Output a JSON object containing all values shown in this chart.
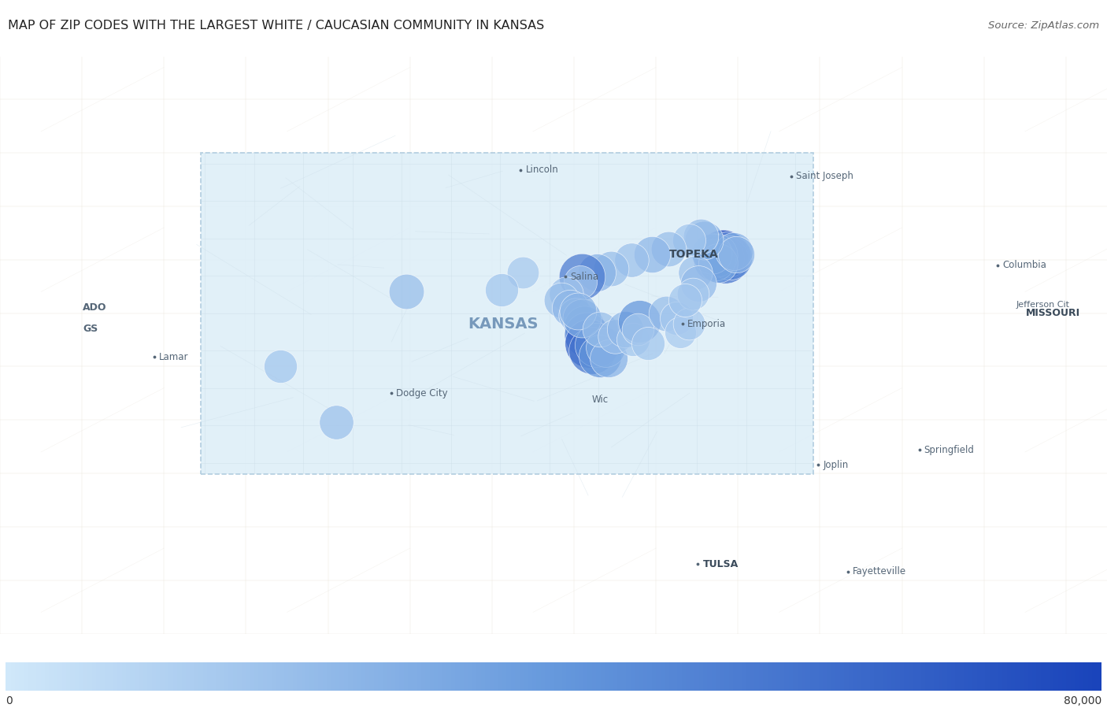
{
  "title": "MAP OF ZIP CODES WITH THE LARGEST WHITE / CAUCASIAN COMMUNITY IN KANSAS",
  "source": "Source: ZipAtlas.com",
  "colorbar_min": 0,
  "colorbar_max": 80000,
  "colorbar_label_min": "0",
  "colorbar_label_max": "80,000",
  "title_fontsize": 11.5,
  "source_fontsize": 9.5,
  "figsize": [
    14.06,
    8.99
  ],
  "dpi": 100,
  "dots": [
    {
      "lon": -95.69,
      "lat": 39.04,
      "size": 78000
    },
    {
      "lon": -95.72,
      "lat": 39.01,
      "size": 65000
    },
    {
      "lon": -95.66,
      "lat": 39.0,
      "size": 58000
    },
    {
      "lon": -95.63,
      "lat": 39.05,
      "size": 52000
    },
    {
      "lon": -95.6,
      "lat": 39.02,
      "size": 48000
    },
    {
      "lon": -95.77,
      "lat": 39.04,
      "size": 45000
    },
    {
      "lon": -95.79,
      "lat": 39.0,
      "size": 40000
    },
    {
      "lon": -95.82,
      "lat": 39.06,
      "size": 35000
    },
    {
      "lon": -95.74,
      "lat": 38.97,
      "size": 32000
    },
    {
      "lon": -95.55,
      "lat": 39.08,
      "size": 28000
    },
    {
      "lon": -95.52,
      "lat": 39.05,
      "size": 25000
    },
    {
      "lon": -95.92,
      "lat": 39.18,
      "size": 30000
    },
    {
      "lon": -95.95,
      "lat": 39.22,
      "size": 22000
    },
    {
      "lon": -96.1,
      "lat": 39.18,
      "size": 18000
    },
    {
      "lon": -96.35,
      "lat": 39.1,
      "size": 22000
    },
    {
      "lon": -96.55,
      "lat": 39.05,
      "size": 25000
    },
    {
      "lon": -96.8,
      "lat": 39.0,
      "size": 20000
    },
    {
      "lon": -97.05,
      "lat": 38.92,
      "size": 22000
    },
    {
      "lon": -97.22,
      "lat": 38.88,
      "size": 28000
    },
    {
      "lon": -97.4,
      "lat": 38.84,
      "size": 55000
    },
    {
      "lon": -97.42,
      "lat": 38.79,
      "size": 18000
    },
    {
      "lon": -97.6,
      "lat": 38.68,
      "size": 20000
    },
    {
      "lon": -97.65,
      "lat": 38.62,
      "size": 22000
    },
    {
      "lon": -97.55,
      "lat": 38.55,
      "size": 25000
    },
    {
      "lon": -97.48,
      "lat": 38.48,
      "size": 20000
    },
    {
      "lon": -97.38,
      "lat": 38.38,
      "size": 35000
    },
    {
      "lon": -97.35,
      "lat": 38.3,
      "size": 50000
    },
    {
      "lon": -97.32,
      "lat": 38.22,
      "size": 65000
    },
    {
      "lon": -97.28,
      "lat": 38.15,
      "size": 58000
    },
    {
      "lon": -97.22,
      "lat": 38.2,
      "size": 48000
    },
    {
      "lon": -97.18,
      "lat": 38.1,
      "size": 42000
    },
    {
      "lon": -97.12,
      "lat": 38.18,
      "size": 32000
    },
    {
      "lon": -97.08,
      "lat": 38.08,
      "size": 28000
    },
    {
      "lon": -97.4,
      "lat": 38.45,
      "size": 30000
    },
    {
      "lon": -97.45,
      "lat": 38.52,
      "size": 26000
    },
    {
      "lon": -97.18,
      "lat": 38.35,
      "size": 22000
    },
    {
      "lon": -97.0,
      "lat": 38.28,
      "size": 20000
    },
    {
      "lon": -96.88,
      "lat": 38.35,
      "size": 25000
    },
    {
      "lon": -96.78,
      "lat": 38.25,
      "size": 18000
    },
    {
      "lon": -96.7,
      "lat": 38.42,
      "size": 42000
    },
    {
      "lon": -96.72,
      "lat": 38.35,
      "size": 16000
    },
    {
      "lon": -96.6,
      "lat": 38.22,
      "size": 18000
    },
    {
      "lon": -96.38,
      "lat": 38.5,
      "size": 22000
    },
    {
      "lon": -96.25,
      "lat": 38.45,
      "size": 18000
    },
    {
      "lon": -96.2,
      "lat": 38.32,
      "size": 15000
    },
    {
      "lon": -96.1,
      "lat": 38.4,
      "size": 16000
    },
    {
      "lon": -98.12,
      "lat": 38.88,
      "size": 16000
    },
    {
      "lon": -98.38,
      "lat": 38.72,
      "size": 18000
    },
    {
      "lon": -99.55,
      "lat": 38.7,
      "size": 22000
    },
    {
      "lon": -101.08,
      "lat": 38.0,
      "size": 18000
    },
    {
      "lon": -100.4,
      "lat": 37.48,
      "size": 20000
    },
    {
      "lon": -96.02,
      "lat": 38.88,
      "size": 20000
    },
    {
      "lon": -95.98,
      "lat": 38.78,
      "size": 24000
    },
    {
      "lon": -96.05,
      "lat": 38.68,
      "size": 16000
    },
    {
      "lon": -96.15,
      "lat": 38.62,
      "size": 18000
    }
  ],
  "city_labels": [
    {
      "name": "Lincoln",
      "lon": -98.15,
      "lat": 39.84,
      "dot": true,
      "align": "left"
    },
    {
      "name": "TOPEKA",
      "lon": -95.68,
      "lat": 39.05,
      "dot": false,
      "bold": true,
      "fontsize": 10,
      "color": "#3a4a5a",
      "align": "right"
    },
    {
      "name": "Salina",
      "lon": -97.61,
      "lat": 38.84,
      "dot": true,
      "align": "left",
      "fontsize": 8.5,
      "color": "#556677"
    },
    {
      "name": "Emporia",
      "lon": -96.18,
      "lat": 38.4,
      "dot": true,
      "align": "left",
      "fontsize": 8.5,
      "color": "#556677"
    },
    {
      "name": "KANSAS",
      "lon": -98.85,
      "lat": 38.4,
      "dot": false,
      "bold": true,
      "fontsize": 14,
      "color": "#7799bb",
      "align": "left"
    },
    {
      "name": "Dodge City",
      "lon": -99.73,
      "lat": 37.75,
      "dot": true,
      "align": "left",
      "fontsize": 8.5,
      "color": "#556677"
    },
    {
      "name": "Lamar",
      "lon": -102.62,
      "lat": 38.09,
      "dot": true,
      "align": "left",
      "fontsize": 8.5,
      "color": "#556677"
    },
    {
      "name": "Wic",
      "lon": -97.34,
      "lat": 37.69,
      "dot": false,
      "align": "left",
      "fontsize": 8.5,
      "color": "#556677"
    },
    {
      "name": "Joplin",
      "lon": -94.52,
      "lat": 37.08,
      "dot": true,
      "align": "left",
      "fontsize": 8.5,
      "color": "#556677"
    },
    {
      "name": "Springfield",
      "lon": -93.29,
      "lat": 37.22,
      "dot": true,
      "align": "left",
      "fontsize": 8.5,
      "color": "#556677"
    },
    {
      "name": "Fayetteville",
      "lon": -94.16,
      "lat": 36.08,
      "dot": true,
      "align": "left",
      "fontsize": 8.5,
      "color": "#556677"
    },
    {
      "name": "TULSA",
      "lon": -95.99,
      "lat": 36.15,
      "dot": true,
      "bold": true,
      "fontsize": 9,
      "color": "#3a4a5a",
      "align": "left"
    },
    {
      "name": "Columbia",
      "lon": -92.33,
      "lat": 38.95,
      "dot": true,
      "align": "left",
      "fontsize": 8.5,
      "color": "#556677"
    },
    {
      "name": "MISSOURI",
      "lon": -92.05,
      "lat": 38.5,
      "dot": false,
      "bold": true,
      "fontsize": 9,
      "color": "#3a4a5a",
      "align": "left"
    },
    {
      "name": "Jefferson Cit",
      "lon": -92.17,
      "lat": 38.58,
      "dot": false,
      "align": "left",
      "fontsize": 8,
      "color": "#556677"
    },
    {
      "name": "Saint Joseph",
      "lon": -94.85,
      "lat": 39.78,
      "dot": true,
      "align": "left",
      "fontsize": 8.5,
      "color": "#556677"
    },
    {
      "name": "ADO",
      "lon": -103.55,
      "lat": 38.55,
      "dot": false,
      "bold": true,
      "fontsize": 9,
      "color": "#556677",
      "align": "left"
    },
    {
      "name": "GS",
      "lon": -103.55,
      "lat": 38.35,
      "dot": false,
      "bold": true,
      "fontsize": 9,
      "color": "#556677",
      "align": "left"
    }
  ],
  "kansas_bounds": {
    "lon_min": -102.05,
    "lon_max": -94.58,
    "lat_min": 36.99,
    "lat_max": 40.0
  },
  "view_bounds": {
    "lon_min": -104.5,
    "lon_max": -91.0,
    "lat_min": 35.5,
    "lat_max": 40.9
  },
  "outside_bg": "#f2efe9",
  "kansas_fill": "#ddeef8",
  "kansas_fill_alpha": 0.88,
  "kansas_border_color": "#aac8dc",
  "road_color_outside": "#e8e2d8",
  "road_color_inside": "#ccdde8",
  "color_low": "#d0e8fa",
  "color_mid": "#6699dd",
  "color_high": "#1a44bb",
  "dot_alpha": 0.72
}
